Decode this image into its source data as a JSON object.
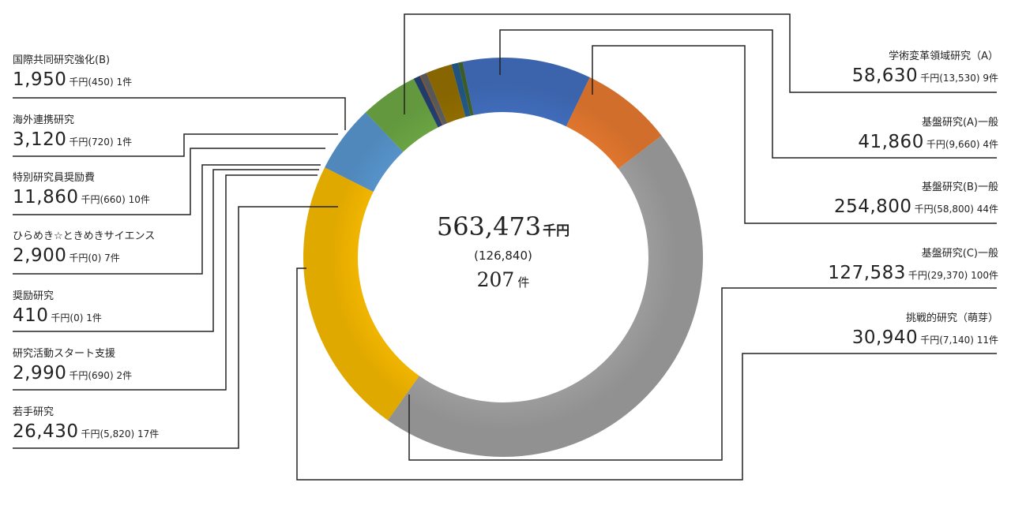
{
  "chart_data": {
    "type": "donut",
    "center": {
      "total_value": "563,473",
      "total_unit": "千円",
      "total_sub": "(126,840)",
      "count_value": "207",
      "count_unit": "件"
    },
    "slices": [
      {
        "name": "学術変革領域研究（A）",
        "value": 58630,
        "amount": "58,630",
        "detail": "千円(13,530) 9件",
        "sub_value": 13530,
        "count": 9,
        "color": "#4472c4"
      },
      {
        "name": "基盤研究(A)一般",
        "value": 41860,
        "amount": "41,860",
        "detail": "千円(9,660) 4件",
        "sub_value": 9660,
        "count": 4,
        "color": "#ed7d31"
      },
      {
        "name": "基盤研究(B)一般",
        "value": 254800,
        "amount": "254,800",
        "detail": "千円(58,800) 44件",
        "sub_value": 58800,
        "count": 44,
        "color": "#a5a5a5"
      },
      {
        "name": "基盤研究(C)一般",
        "value": 127583,
        "amount": "127,583",
        "detail": "千円(29,370) 100件",
        "sub_value": 29370,
        "count": 100,
        "color": "#ffc000"
      },
      {
        "name": "挑戦的研究（萌芽）",
        "value": 30940,
        "amount": "30,940",
        "detail": "千円(7,140) 11件",
        "sub_value": 7140,
        "count": 11,
        "color": "#5b9bd5"
      },
      {
        "name": "若手研究",
        "value": 26430,
        "amount": "26,430",
        "detail": "千円(5,820) 17件",
        "sub_value": 5820,
        "count": 17,
        "color": "#70ad47"
      },
      {
        "name": "研究活動スタート支援",
        "value": 2990,
        "amount": "2,990",
        "detail": "千円(690) 2件",
        "sub_value": 690,
        "count": 2,
        "color": "#264478"
      },
      {
        "name": "奨励研究",
        "value": 410,
        "amount": "410",
        "detail": "千円(0) 1件",
        "sub_value": 0,
        "count": 1,
        "color": "#9e480e"
      },
      {
        "name": "ひらめき☆ときめきサイエンス",
        "value": 2900,
        "amount": "2,900",
        "detail": "千円(0) 7件",
        "sub_value": 0,
        "count": 7,
        "color": "#636363"
      },
      {
        "name": "特別研究員奨励費",
        "value": 11860,
        "amount": "11,860",
        "detail": "千円(660) 10件",
        "sub_value": 660,
        "count": 10,
        "color": "#997300"
      },
      {
        "name": "海外連携研究",
        "value": 3120,
        "amount": "3,120",
        "detail": "千円(720) 1件",
        "sub_value": 720,
        "count": 1,
        "color": "#255e91"
      },
      {
        "name": "国際共同研究強化(B)",
        "value": 1950,
        "amount": "1,950",
        "detail": "千円(450) 1件",
        "sub_value": 450,
        "count": 1,
        "color": "#43682b"
      }
    ]
  }
}
